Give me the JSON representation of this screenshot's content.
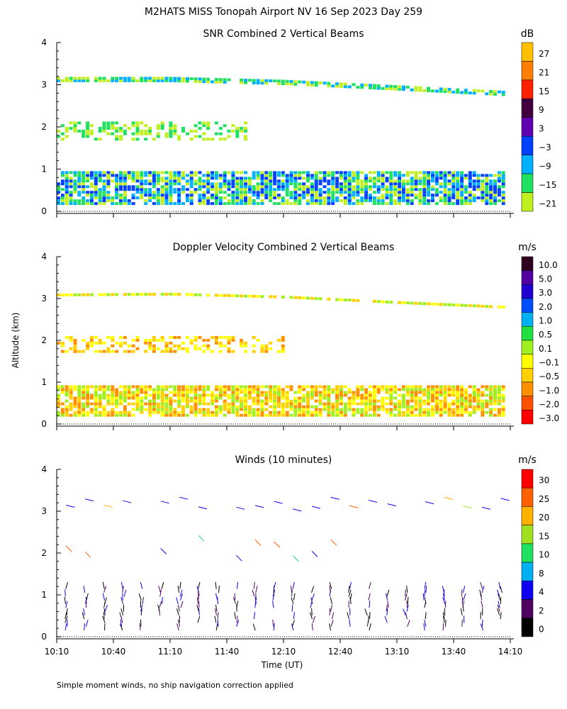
{
  "title": "M2HATS MISS Tonopah Airport NV  16 Sep 2023 Day 259",
  "ylabel": "Altitude (km)",
  "xlabel": "Time (UT)",
  "footnote": "Simple moment winds, no ship navigation correction applied",
  "x_ticks": [
    "10:10",
    "10:40",
    "11:10",
    "11:40",
    "12:10",
    "12:40",
    "13:10",
    "13:40",
    "14:10"
  ],
  "y_ticks": [
    "0",
    "1",
    "2",
    "3",
    "4"
  ],
  "chart_data": [
    {
      "type": "heatmap",
      "title": "SNR Combined 2 Vertical Beams",
      "unit": "dB",
      "xlim": [
        "10:10",
        "14:10"
      ],
      "ylim": [
        0,
        4
      ],
      "colorbar_labels": [
        "27",
        "21",
        "15",
        "9",
        "3",
        "−3",
        "−9",
        "−15",
        "−21"
      ],
      "colors": [
        "#ffc000",
        "#ff8000",
        "#ff2000",
        "#400040",
        "#6000b0",
        "#0040ff",
        "#00b0ff",
        "#20e060",
        "#c0f020"
      ],
      "layers": [
        {
          "name": "top",
          "t": [
            0,
            60,
            120,
            180,
            240
          ],
          "z": [
            3.12,
            3.12,
            3.05,
            2.92,
            2.78
          ],
          "thick": 0.12,
          "levels": [
            6,
            7,
            8
          ]
        },
        {
          "name": "mid",
          "t": [
            0,
            100
          ],
          "z": [
            1.9,
            1.9
          ],
          "thick": 0.45,
          "levels": [
            7,
            8
          ]
        },
        {
          "name": "bl",
          "t": [
            0,
            240
          ],
          "z": [
            0.55,
            0.55
          ],
          "thick": 0.8,
          "levels": [
            5,
            6,
            7,
            8
          ]
        }
      ]
    },
    {
      "type": "heatmap",
      "title": "Doppler Velocity Combined 2 Vertical Beams",
      "unit": "m/s",
      "xlim": [
        "10:10",
        "14:10"
      ],
      "ylim": [
        0,
        4
      ],
      "colorbar_labels": [
        "10.0",
        "5.0",
        "3.0",
        "2.0",
        "1.0",
        "0.5",
        "0.1",
        "−0.1",
        "−0.5",
        "−1.0",
        "−2.0",
        "−3.0"
      ],
      "colors": [
        "#300020",
        "#5000a0",
        "#2000d0",
        "#0050ff",
        "#00b0f0",
        "#20e040",
        "#a0f020",
        "#ffff00",
        "#ffd000",
        "#ff9000",
        "#ff5000",
        "#ff0000"
      ],
      "layers": [
        {
          "name": "top",
          "t": [
            0,
            60,
            120,
            180,
            240
          ],
          "z": [
            3.1,
            3.12,
            3.05,
            2.92,
            2.8
          ],
          "thick": 0.1,
          "levels": [
            6,
            7,
            8
          ]
        },
        {
          "name": "mid",
          "t": [
            0,
            120
          ],
          "z": [
            1.9,
            1.9
          ],
          "thick": 0.4,
          "levels": [
            7,
            8,
            9
          ]
        },
        {
          "name": "bl",
          "t": [
            0,
            240
          ],
          "z": [
            0.55,
            0.55
          ],
          "thick": 0.75,
          "levels": [
            6,
            7,
            8,
            9
          ]
        }
      ]
    },
    {
      "type": "barbs",
      "title": "Winds (10 minutes)",
      "unit": "m/s",
      "xlim": [
        "10:10",
        "14:10"
      ],
      "ylim": [
        0,
        4
      ],
      "colorbar_labels": [
        "30",
        "25",
        "20",
        "15",
        "10",
        "8",
        "4",
        "2",
        "0"
      ],
      "colors": [
        "#ff0000",
        "#ff6000",
        "#ffb000",
        "#a0e020",
        "#20e060",
        "#00b0f0",
        "#1000f0",
        "#500060",
        "#000000"
      ]
    }
  ]
}
